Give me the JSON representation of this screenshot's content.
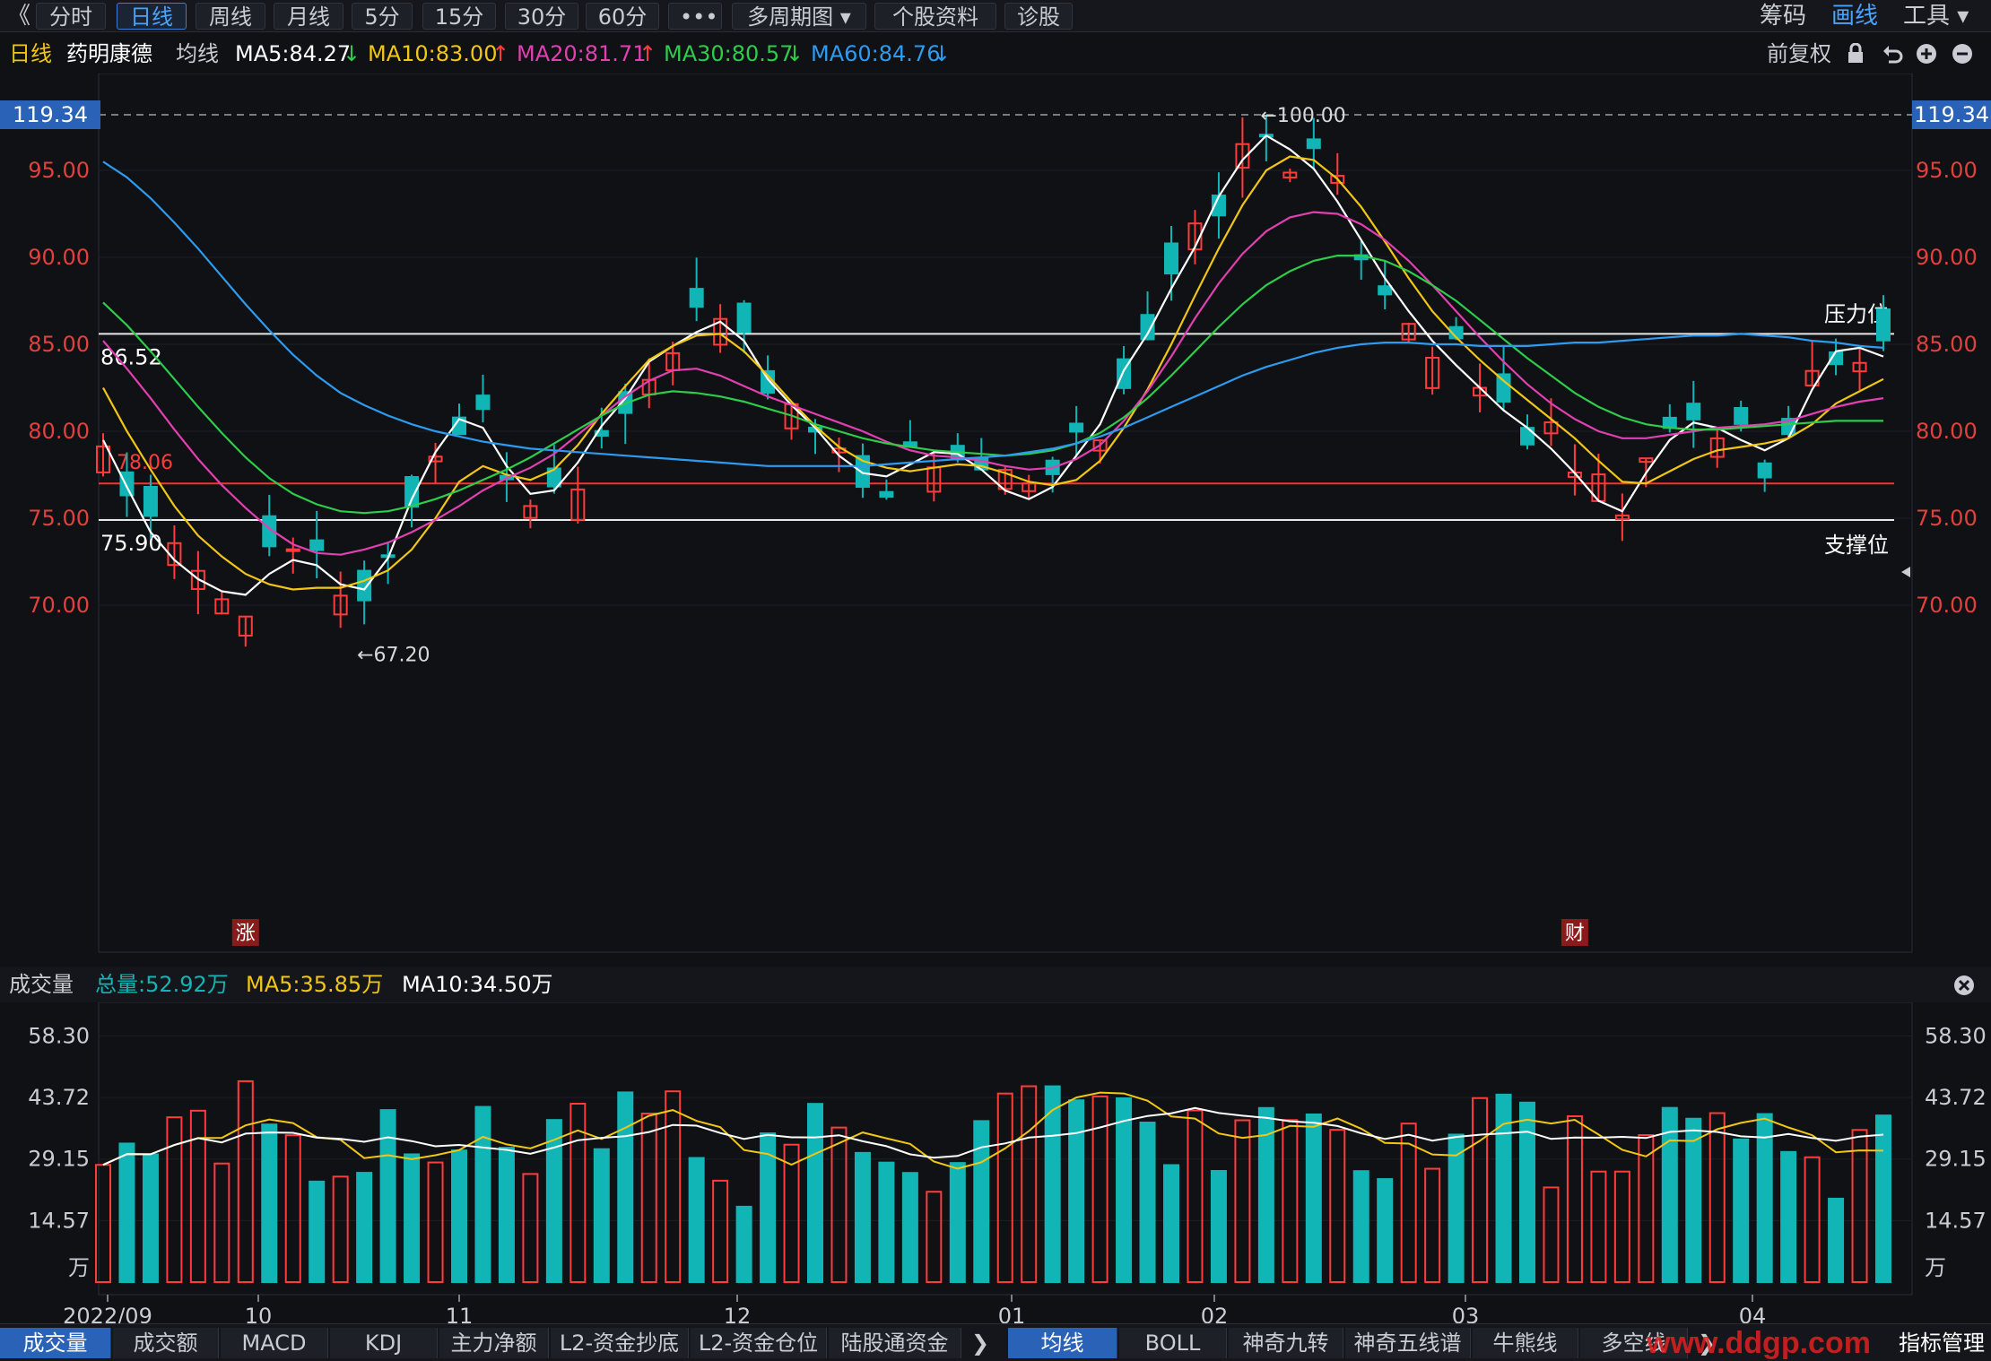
{
  "toolbar": {
    "back_glyph": "《",
    "buttons": [
      "分时",
      "日线",
      "周线",
      "月线",
      "5分",
      "15分",
      "30分",
      "60分",
      "•••",
      "多周期图 ▾",
      "个股资料",
      "诊股"
    ],
    "active": "日线",
    "right": [
      "筹码",
      "画线",
      "工具 ▾"
    ],
    "right_active": "画线"
  },
  "info": {
    "period": "日线",
    "stock": "药明康德",
    "avg_label": "均线",
    "ma5": "MA5:84.27",
    "ma10": "MA10:83.00",
    "ma20": "MA20:81.71",
    "ma30": "MA30:80.57",
    "ma60": "MA60:84.76",
    "ma5_dir": "↓",
    "ma10_dir": "↑",
    "ma20_dir": "↑",
    "ma30_dir": "↓",
    "ma60_dir": "↓",
    "adjust": "前复权",
    "colors": {
      "ma5": "#ffffff",
      "ma10": "#f2c615",
      "ma20": "#e040b0",
      "ma30": "#2ecc4a",
      "ma60": "#2d9bf0",
      "up": "#ff3b3b",
      "down": "#12b5b5"
    }
  },
  "chart_data": [
    {
      "type": "candlestick",
      "y_axis_labels": [
        "119.34",
        "95.00",
        "90.00",
        "85.00",
        "80.00",
        "75.00",
        "70.00"
      ],
      "ylim": [
        64.0,
        121.5
      ],
      "annotations": {
        "high": "100.00",
        "low": "←67.20",
        "resistance_value": "86.52",
        "resistance_label": "压力位",
        "support_value": "75.90",
        "support_label": "支撑位",
        "red_line_value": "78.06",
        "top_dashed": "119.34",
        "markers": [
          "涨",
          "财"
        ]
      },
      "x_labels": [
        "2022/09",
        "10",
        "11",
        "12",
        "01",
        "02",
        "03",
        "04"
      ],
      "series": [
        {
          "name": "MA5",
          "color": "#ffffff",
          "values": [
            79.5,
            76.8,
            74.2,
            72.6,
            71.5,
            70.8,
            70.6,
            71.8,
            72.6,
            72.3,
            71.2,
            70.9,
            72.7,
            76.1,
            78.8,
            80.7,
            80.2,
            78.0,
            76.4,
            76.6,
            78.2,
            80.3,
            81.9,
            84.0,
            84.9,
            85.7,
            86.3,
            85.2,
            83.0,
            81.5,
            80.2,
            78.6,
            77.6,
            77.4,
            78.1,
            78.8,
            78.7,
            77.8,
            76.6,
            76.1,
            76.8,
            78.6,
            80.4,
            83.5,
            85.6,
            88.2,
            90.6,
            93.5,
            95.6,
            97.0,
            96.2,
            95.1,
            93.2,
            91.0,
            88.8,
            86.9,
            85.2,
            83.8,
            82.5,
            81.2,
            80.2,
            79.0,
            77.6,
            76.0,
            75.4,
            77.6,
            79.5,
            80.5,
            80.2,
            79.5,
            78.9,
            79.6,
            82.4,
            84.6,
            84.8,
            84.3
          ]
        },
        {
          "name": "MA10",
          "color": "#f2c615",
          "values": [
            82.5,
            80.0,
            77.8,
            75.7,
            74.0,
            72.8,
            71.8,
            71.2,
            70.9,
            71.0,
            71.0,
            71.4,
            72.0,
            73.2,
            75.0,
            77.1,
            78.0,
            77.5,
            77.2,
            77.8,
            79.2,
            81.0,
            82.6,
            84.1,
            84.9,
            85.5,
            85.6,
            84.6,
            83.2,
            81.7,
            80.3,
            79.1,
            78.3,
            77.9,
            77.7,
            77.9,
            78.1,
            78.0,
            77.6,
            77.1,
            76.9,
            77.2,
            78.3,
            80.2,
            82.4,
            85.0,
            87.8,
            90.5,
            93.0,
            95.0,
            95.8,
            95.6,
            94.5,
            92.9,
            90.9,
            88.8,
            86.9,
            85.4,
            84.1,
            82.9,
            81.8,
            80.7,
            79.6,
            78.3,
            77.1,
            77.0,
            77.7,
            78.4,
            78.9,
            79.1,
            79.3,
            79.6,
            80.4,
            81.6,
            82.3,
            83.0
          ]
        },
        {
          "name": "MA20",
          "color": "#e040b0",
          "values": [
            85.2,
            83.6,
            81.9,
            80.1,
            78.4,
            76.9,
            75.6,
            74.4,
            73.5,
            73.0,
            72.9,
            73.2,
            73.6,
            74.2,
            74.9,
            75.7,
            76.6,
            77.3,
            77.9,
            78.7,
            79.8,
            80.9,
            82.0,
            82.9,
            83.5,
            83.6,
            83.2,
            82.6,
            82.0,
            81.5,
            81.0,
            80.5,
            80.0,
            79.4,
            78.9,
            78.6,
            78.5,
            78.3,
            78.0,
            77.8,
            77.9,
            78.4,
            79.2,
            80.6,
            82.3,
            84.3,
            86.5,
            88.5,
            90.2,
            91.5,
            92.3,
            92.6,
            92.5,
            91.9,
            91.0,
            89.8,
            88.4,
            86.9,
            85.4,
            84.0,
            82.7,
            81.6,
            80.7,
            80.0,
            79.6,
            79.6,
            79.8,
            80.0,
            80.2,
            80.3,
            80.4,
            80.6,
            81.0,
            81.4,
            81.7,
            81.9
          ]
        },
        {
          "name": "MA30",
          "color": "#2ecc4a",
          "values": [
            87.4,
            86.1,
            84.6,
            83.0,
            81.4,
            79.9,
            78.5,
            77.3,
            76.4,
            75.8,
            75.4,
            75.3,
            75.4,
            75.7,
            76.1,
            76.6,
            77.2,
            77.8,
            78.5,
            79.3,
            80.1,
            80.9,
            81.6,
            82.1,
            82.3,
            82.2,
            82.0,
            81.7,
            81.3,
            80.9,
            80.4,
            80.0,
            79.6,
            79.3,
            79.1,
            78.9,
            78.8,
            78.7,
            78.6,
            78.7,
            78.9,
            79.3,
            79.9,
            80.8,
            81.9,
            83.2,
            84.6,
            86.0,
            87.3,
            88.4,
            89.2,
            89.8,
            90.1,
            90.1,
            89.8,
            89.2,
            88.4,
            87.5,
            86.4,
            85.3,
            84.2,
            83.2,
            82.2,
            81.4,
            80.8,
            80.4,
            80.2,
            80.1,
            80.1,
            80.2,
            80.3,
            80.4,
            80.5,
            80.6,
            80.6,
            80.6
          ]
        },
        {
          "name": "MA60",
          "color": "#2d9bf0",
          "values": [
            95.5,
            94.6,
            93.4,
            92.0,
            90.5,
            88.9,
            87.3,
            85.8,
            84.4,
            83.2,
            82.2,
            81.5,
            80.9,
            80.4,
            80.0,
            79.7,
            79.4,
            79.2,
            79.0,
            78.9,
            78.8,
            78.7,
            78.6,
            78.5,
            78.4,
            78.3,
            78.2,
            78.1,
            78.0,
            78.0,
            78.0,
            78.0,
            78.0,
            78.1,
            78.2,
            78.3,
            78.4,
            78.5,
            78.6,
            78.8,
            79.0,
            79.3,
            79.7,
            80.2,
            80.8,
            81.4,
            82.0,
            82.6,
            83.2,
            83.7,
            84.1,
            84.5,
            84.8,
            85.0,
            85.1,
            85.1,
            85.0,
            85.0,
            84.9,
            84.9,
            84.9,
            85.0,
            85.1,
            85.1,
            85.2,
            85.3,
            85.4,
            85.5,
            85.5,
            85.6,
            85.5,
            85.4,
            85.2,
            85.1,
            84.9,
            84.8
          ]
        }
      ]
    },
    {
      "type": "bar",
      "title": "成交量",
      "y_axis_labels": [
        "58.30",
        "43.72",
        "29.15",
        "14.57",
        "万"
      ],
      "ylim": [
        0,
        62
      ],
      "legend": {
        "total": "总量:52.92万",
        "ma5": "MA5:35.85万",
        "ma10": "MA10:34.50万"
      }
    }
  ],
  "indicator_tabs": [
    "成交量",
    "成交额",
    "MACD",
    "KDJ",
    "主力净额",
    "L2-资金抄底",
    "L2-资金仓位",
    "陆股通资金"
  ],
  "indicator_active": "成交量",
  "overlay_tabs": [
    "均线",
    "BOLL",
    "神奇九转",
    "神奇五线谱",
    "牛熊线",
    "多空线"
  ],
  "overlay_active": "均线",
  "footer_right": "指标管理",
  "watermark": "www.ddgp.com"
}
